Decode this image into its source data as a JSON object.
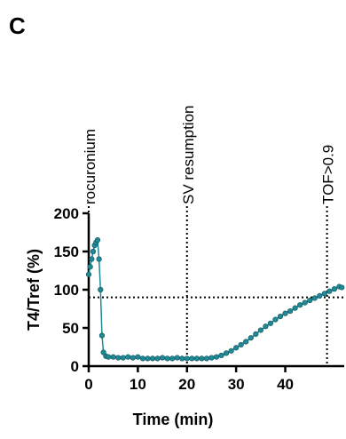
{
  "chart_data": {
    "type": "line",
    "panel": "C",
    "xlabel": "Time (min)",
    "ylabel": "T4/Tref (%)",
    "xlim": [
      0,
      52
    ],
    "xticks": [
      0,
      10,
      20,
      30,
      40
    ],
    "ylim": [
      0,
      200
    ],
    "yticks": [
      0,
      50,
      100,
      150,
      200
    ],
    "color": "#1f8a96",
    "x": [
      0,
      0.3,
      0.6,
      0.9,
      1.2,
      1.5,
      1.8,
      2.1,
      2.4,
      2.7,
      3,
      3.5,
      4,
      5,
      6,
      7,
      8,
      9,
      10,
      11,
      12,
      13,
      14,
      15,
      16,
      17,
      18,
      19,
      20,
      21,
      22,
      23,
      24,
      25,
      26,
      27,
      28,
      29,
      30,
      31,
      32,
      33,
      34,
      35,
      36,
      37,
      38,
      39,
      40,
      41,
      42,
      43,
      44,
      45,
      46,
      47,
      48,
      49,
      50,
      51,
      51.5
    ],
    "values": [
      120,
      130,
      140,
      150,
      158,
      162,
      165,
      140,
      100,
      40,
      18,
      13,
      12,
      12,
      11,
      11,
      12,
      11,
      12,
      10,
      10,
      10,
      10,
      11,
      10,
      10,
      11,
      10,
      10,
      10,
      10,
      10,
      10,
      11,
      12,
      14,
      17,
      20,
      24,
      28,
      32,
      37,
      42,
      47,
      52,
      56,
      61,
      65,
      69,
      72,
      76,
      80,
      83,
      86,
      89,
      92,
      95,
      98,
      101,
      104,
      103
    ],
    "annotations": [
      {
        "text": "rocuronium",
        "x": 0
      },
      {
        "text": "SV resumption",
        "x": 20
      },
      {
        "text": "TOF>0.9",
        "x": 48.5
      }
    ],
    "hline": 90
  }
}
